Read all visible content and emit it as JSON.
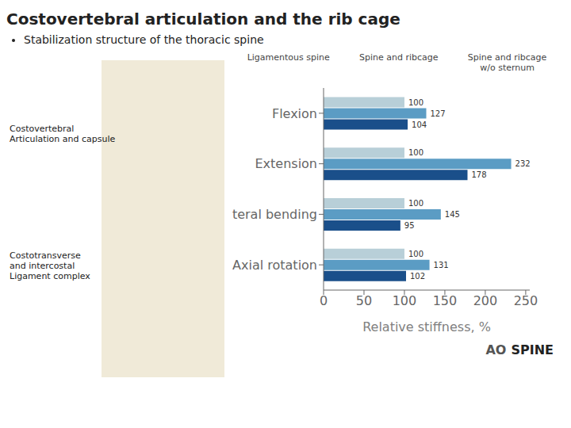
{
  "chart_data": {
    "type": "bar",
    "orientation": "horizontal",
    "title": "Costovertebral articulation and the rib cage",
    "subtitle": "Stabilization structure of the thoracic spine",
    "categories": [
      "Flexion",
      "Extension",
      "Lateral bending",
      "Axial rotation"
    ],
    "series": [
      {
        "name": "Ligamentous spine",
        "color": "#b8cfd8",
        "values": [
          100,
          100,
          100,
          100
        ]
      },
      {
        "name": "Spine and ribcage",
        "color": "#5b9cc4",
        "values": [
          127,
          232,
          145,
          131
        ]
      },
      {
        "name": "Spine and ribcage w/o sternum",
        "color": "#1a4f8a",
        "values": [
          104,
          178,
          95,
          102
        ]
      }
    ],
    "xlabel": "Relative stiffness, %",
    "xlim": [
      0,
      255
    ],
    "xticks": [
      0,
      50,
      100,
      150,
      200,
      250
    ],
    "grid": false,
    "data_labels": true,
    "annotations": [
      "Costovertebral\nArticulation and capsule",
      "Costotransverse\nand intercostal\nLigament complex",
      "Ligamentous spine",
      "Spine and ribcage",
      "Spine and ribcage\nw/o sternum",
      "AO",
      "SPINE"
    ]
  }
}
